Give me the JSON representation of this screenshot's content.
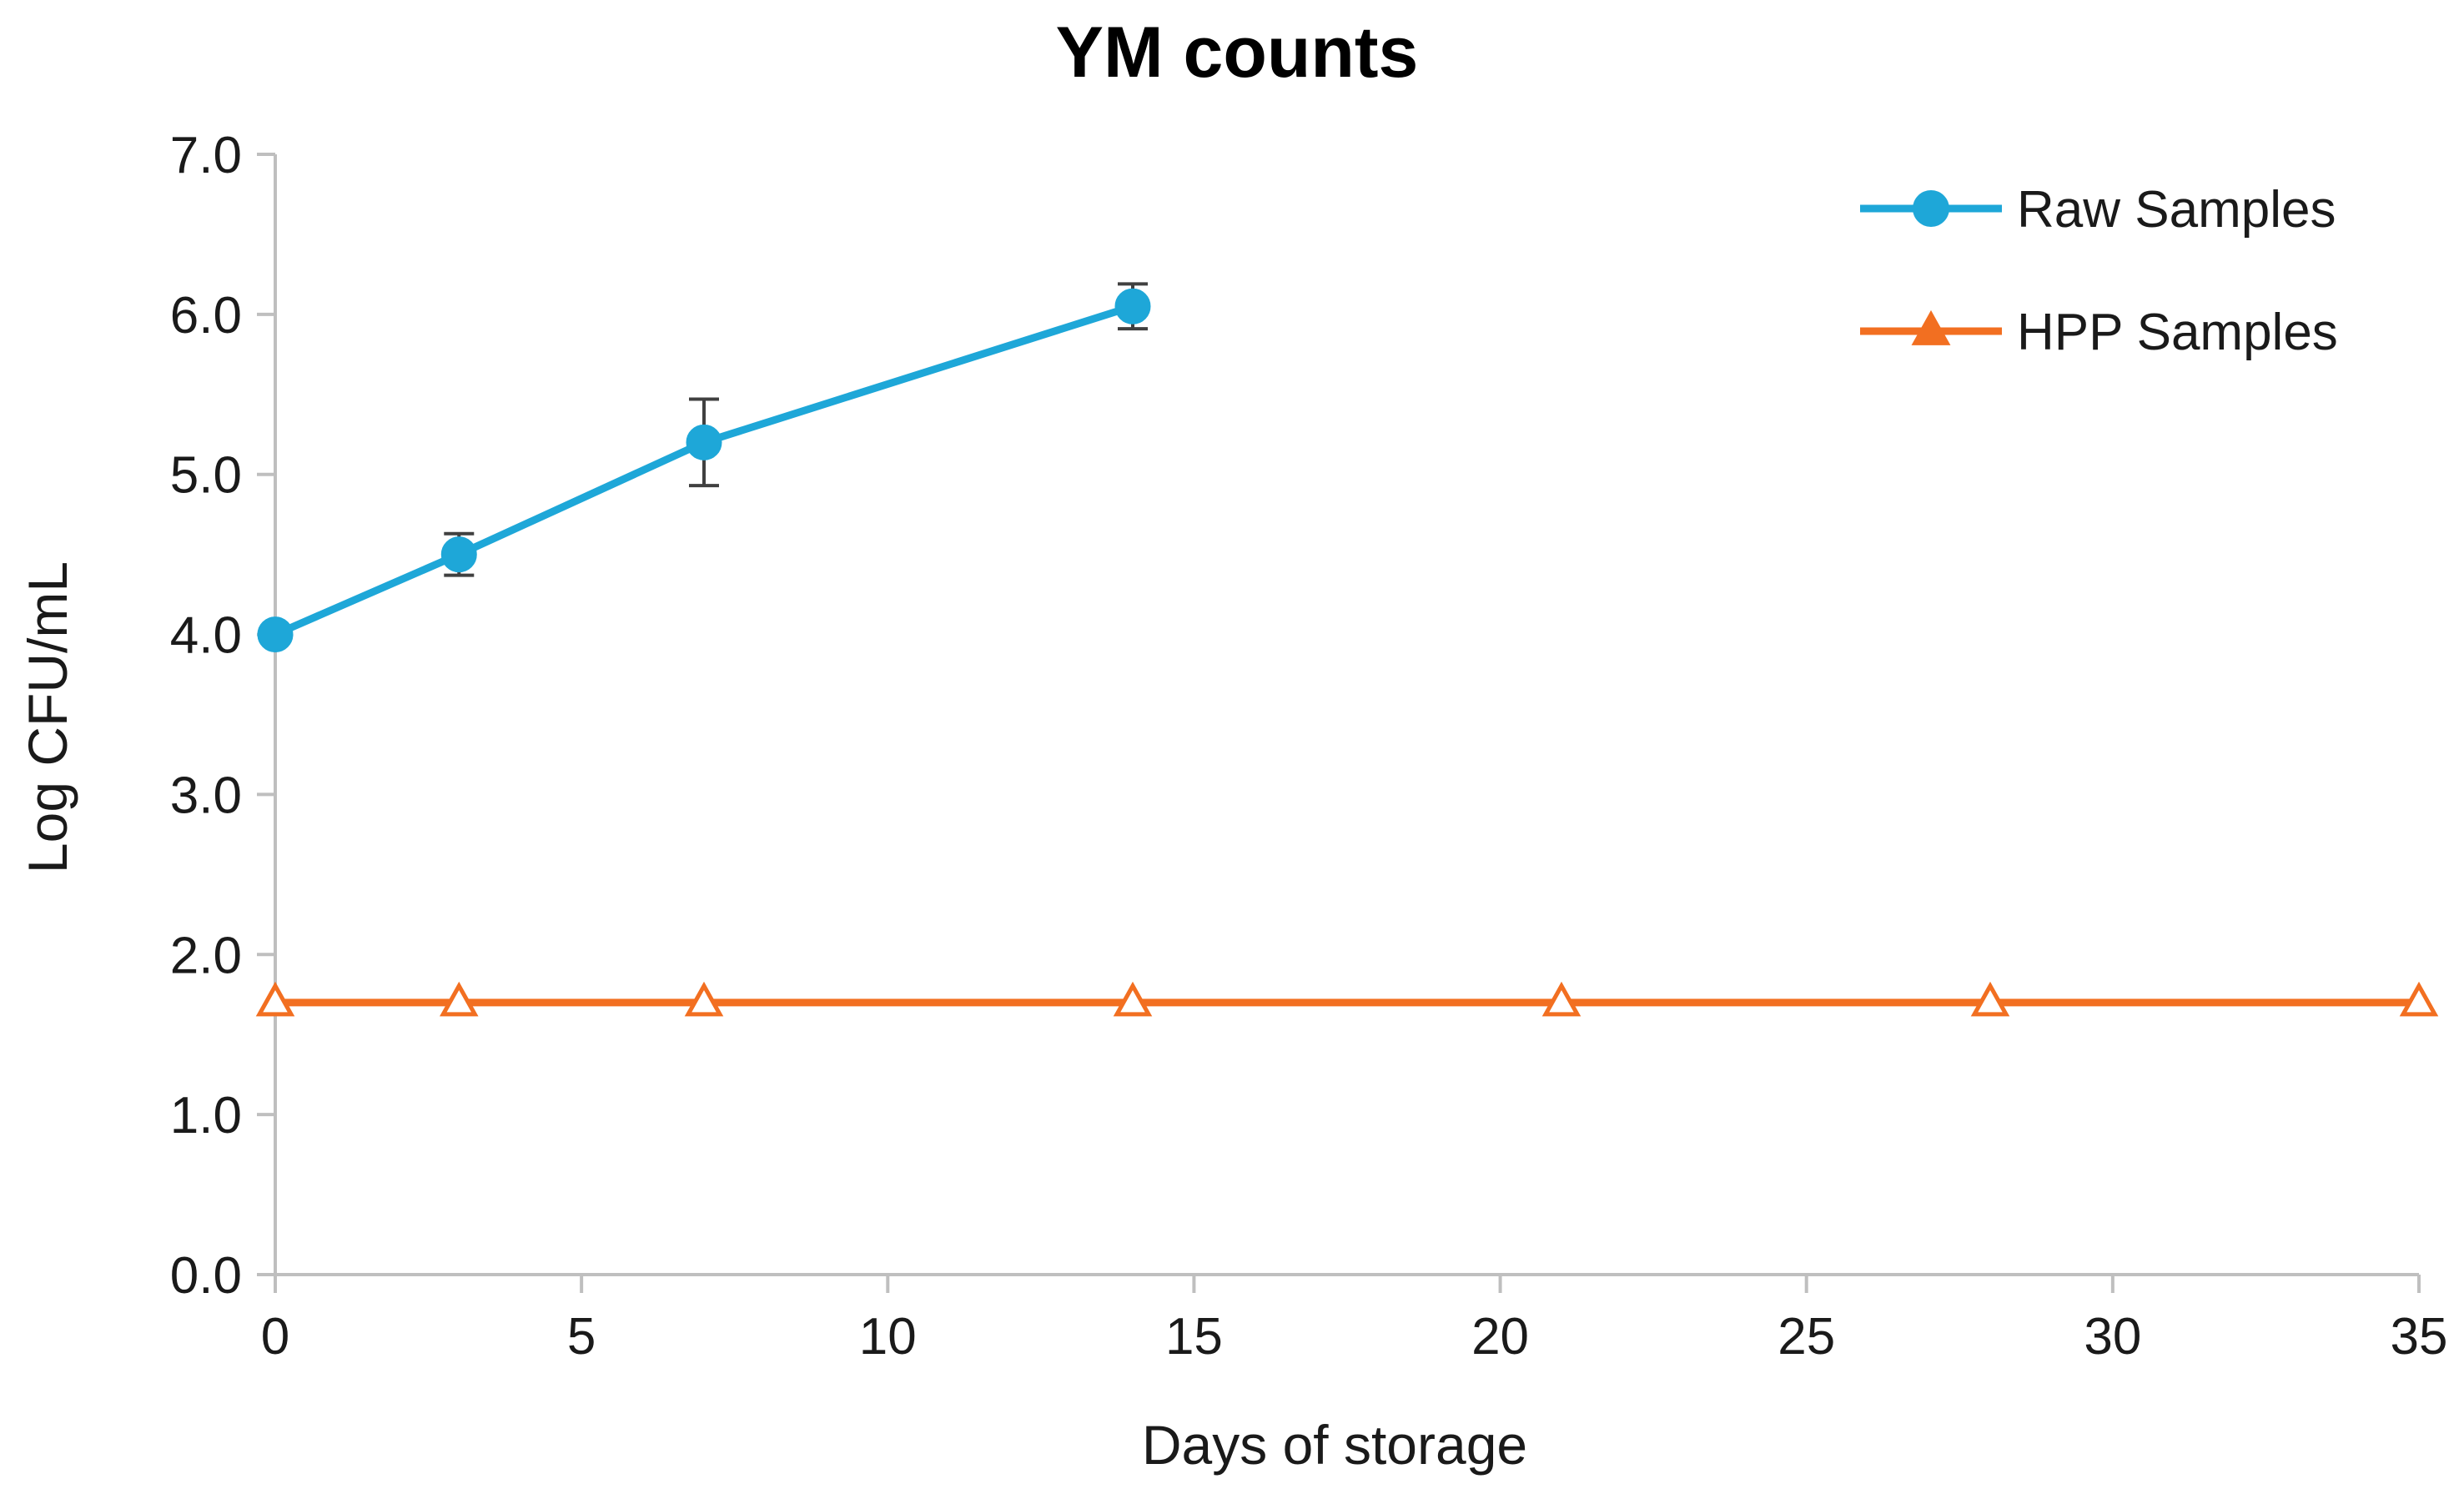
{
  "chart_data": {
    "type": "line",
    "title": "YM counts",
    "xlabel": "Days of storage",
    "ylabel": "Log CFU/mL",
    "xlim": [
      0,
      35
    ],
    "ylim": [
      0,
      7
    ],
    "x_ticks": [
      "0",
      "5",
      "10",
      "15",
      "20",
      "25",
      "30",
      "35"
    ],
    "y_ticks": [
      "0.0",
      "1.0",
      "2.0",
      "3.0",
      "4.0",
      "5.0",
      "6.0",
      "7.0"
    ],
    "grid": false,
    "legend_position": "top-right",
    "series": [
      {
        "name": "Raw Samples",
        "color": "#1ea7d8",
        "marker": "circle",
        "x": [
          0,
          3,
          7,
          14
        ],
        "y": [
          4.0,
          4.5,
          5.2,
          6.05
        ],
        "error": [
          0.04,
          0.13,
          0.27,
          0.14
        ]
      },
      {
        "name": "HPP Samples",
        "color": "#f26f21",
        "marker": "triangle-open",
        "x": [
          0,
          3,
          7,
          14,
          21,
          28,
          35
        ],
        "y": [
          1.7,
          1.7,
          1.7,
          1.7,
          1.7,
          1.7,
          1.7
        ]
      }
    ]
  }
}
